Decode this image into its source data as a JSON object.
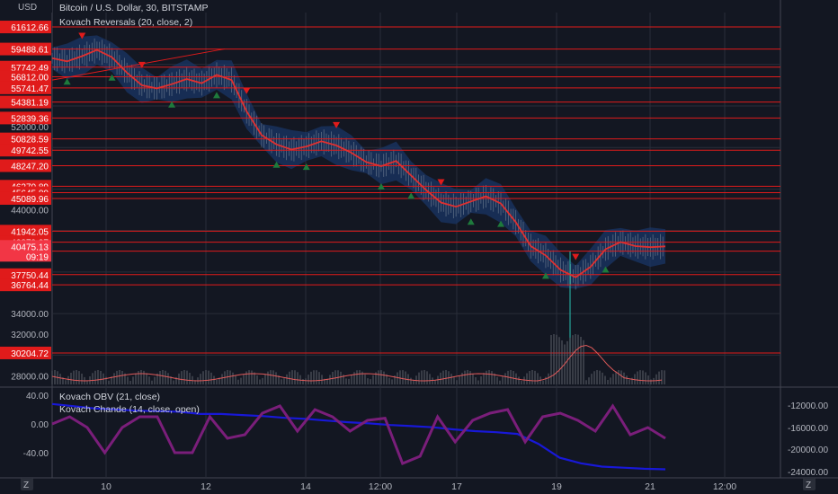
{
  "header": {
    "currency": "USD",
    "title": "Bitcoin / U.S. Dollar, 30, BITSTAMP",
    "indicator": "Kovach Reversals (20, close, 2)"
  },
  "sub_indicators": [
    "Kovach OBV (21, close)",
    "Kovach Chande (14, close, open)"
  ],
  "bottom_icons": {
    "left": "Z",
    "right": "Z"
  },
  "colors": {
    "background": "#131722",
    "level_line": "#e01b1b",
    "price_line": "#e03030",
    "band": "#1a3566",
    "grid": "#2a2e39",
    "up_marker": "#1e7a3c",
    "down_marker": "#e01b1b",
    "obv": "#1818d8",
    "chande": "#7a1e7a",
    "text": "#b2b5be"
  },
  "chart_data": [
    {
      "type": "line",
      "x_ticks": [
        "10",
        "12",
        "14",
        "12:00",
        "17",
        "19",
        "21",
        "12:00"
      ],
      "y_ticks": [
        28000,
        32000,
        34000,
        44000,
        52000
      ],
      "ylim": [
        27000,
        63000
      ],
      "levels": [
        "61612.66",
        "59488.61",
        "57742.49",
        "56812.00",
        "55741.47",
        "54381.19",
        "52839.36",
        "50828.59",
        "49742.55",
        "48247.20",
        "46270.89",
        "45645.80",
        "45089.96",
        "41942.05",
        "40879.97",
        "40014.72",
        "37750.44",
        "36764.44",
        "30204.72"
      ],
      "current_price": "40475.13",
      "countdown": "09:19",
      "series": [
        {
          "values": [
            58600,
            58300,
            58800,
            59400,
            58700,
            57200,
            56000,
            55700,
            56100,
            56600,
            56200,
            57000,
            56500,
            53500,
            51200,
            50300,
            49800,
            50100,
            50600,
            50200,
            49500,
            48600,
            48200,
            48700,
            47300,
            45900,
            44700,
            44300,
            44800,
            45300,
            44600,
            42800,
            40500,
            39600,
            38200,
            37500,
            38500,
            40200,
            40900,
            40500,
            40400,
            40475
          ]
        }
      ]
    },
    {
      "type": "line",
      "left_ticks": [
        "40.00",
        "0.00",
        "-40.00"
      ],
      "right_ticks": [
        "-12000.00",
        "-16000.00",
        "-20000.00",
        "-24000.00"
      ],
      "series": [
        {
          "name": "Kovach OBV (21, close)",
          "values": [
            -11800,
            -12200,
            -12600,
            -12800,
            -13000,
            -13100,
            -13200,
            -13600,
            -13600,
            -13800,
            -14000,
            -14300,
            -14500,
            -14800,
            -15100,
            -15300,
            -15600,
            -15800,
            -16000,
            -16400,
            -16700,
            -16900,
            -17200,
            -19000,
            -21500,
            -22500,
            -23100,
            -23300,
            -23500,
            -23600
          ]
        },
        {
          "name": "Kovach Chande (14, close, open)",
          "values": [
            0,
            10,
            -5,
            -40,
            -5,
            10,
            10,
            -40,
            -40,
            10,
            -20,
            -15,
            15,
            25,
            -10,
            20,
            10,
            -10,
            5,
            8,
            -55,
            -45,
            10,
            -25,
            5,
            15,
            20,
            -25,
            10,
            15,
            5,
            -10,
            25,
            -15,
            -5,
            -20
          ]
        }
      ]
    }
  ]
}
